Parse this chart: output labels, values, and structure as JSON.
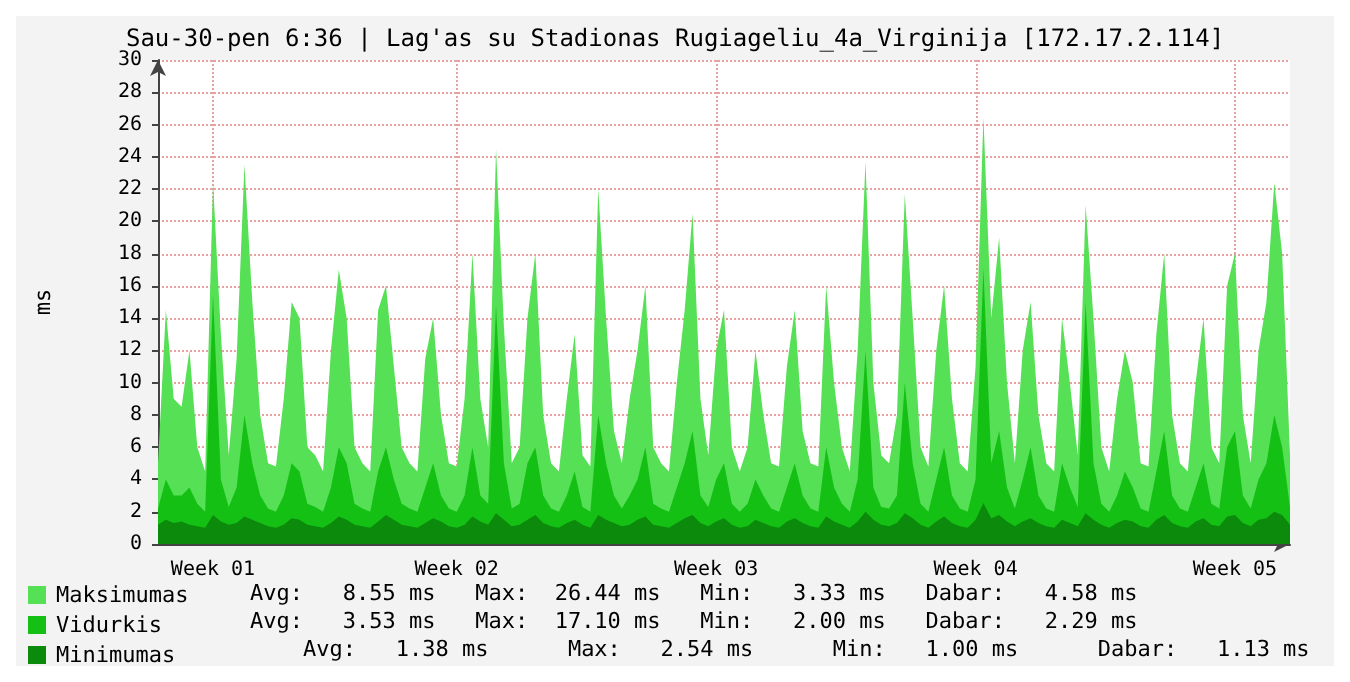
{
  "chart_data": {
    "type": "area",
    "title": "Sau-30-pen 6:36 | Lag'as su Stadionas Rugiageliu_4a_Virginija [172.17.2.114]",
    "ylabel": "ms",
    "categories": [
      null,
      null,
      null,
      null,
      null,
      null,
      null,
      "Week 01",
      null,
      null,
      null,
      null,
      null,
      null,
      null,
      null,
      null,
      null,
      null,
      null,
      null,
      null,
      null,
      null,
      null,
      null,
      null,
      null,
      null,
      null,
      null,
      null,
      null,
      null,
      null,
      null,
      null,
      null,
      "Week 02",
      null,
      null,
      null,
      null,
      null,
      null,
      null,
      null,
      null,
      null,
      null,
      null,
      null,
      null,
      null,
      null,
      null,
      null,
      null,
      null,
      null,
      null,
      null,
      null,
      null,
      null,
      null,
      null,
      null,
      null,
      null,
      null,
      "Week 03",
      null,
      null,
      null,
      null,
      null,
      null,
      null,
      null,
      null,
      null,
      null,
      null,
      null,
      null,
      null,
      null,
      null,
      null,
      null,
      null,
      null,
      null,
      null,
      null,
      null,
      null,
      null,
      null,
      null,
      null,
      null,
      null,
      "Week 04",
      null,
      null,
      null,
      null,
      null,
      null,
      null,
      null,
      null,
      null,
      null,
      null,
      null,
      null,
      null,
      null,
      null,
      null,
      null,
      null,
      null,
      null,
      null,
      null,
      null,
      null,
      null,
      null,
      null,
      null,
      null,
      null,
      "Week 05",
      null,
      null,
      null,
      null,
      null,
      null,
      null
    ],
    "series": [
      {
        "name": "Maksimumas",
        "color": "#55e055",
        "values": [
          5,
          14.5,
          9,
          8.5,
          12,
          6,
          4.5,
          22.4,
          13,
          5.5,
          11.5,
          23.5,
          15,
          8,
          5,
          4.8,
          9,
          15,
          14,
          6,
          5.5,
          4.5,
          12,
          17,
          14,
          6,
          5,
          4.5,
          14.5,
          16,
          11,
          6,
          5,
          4.5,
          11.5,
          14,
          8,
          5,
          4.8,
          9,
          18,
          9,
          6,
          24.5,
          13.5,
          5,
          6,
          14,
          18,
          8,
          5,
          4.5,
          9,
          13,
          5.5,
          4.8,
          22,
          14,
          7,
          5,
          9,
          12,
          16,
          6,
          5,
          4.5,
          10,
          14.5,
          20.5,
          9,
          5.5,
          12,
          14.5,
          6,
          4.5,
          6,
          12,
          8,
          5,
          4.8,
          11,
          14.5,
          7,
          5,
          4.8,
          16,
          10,
          6,
          4.5,
          12,
          23.7,
          10,
          5.5,
          5,
          8,
          21.7,
          14,
          6,
          4.8,
          12,
          16,
          9,
          5,
          4.5,
          11,
          26.44,
          14,
          19,
          10,
          5,
          12,
          15,
          8,
          5,
          4.5,
          14,
          10,
          5.5,
          21,
          14,
          6,
          4.5,
          9,
          12,
          10,
          5,
          4.8,
          13,
          18,
          8,
          5,
          4.5,
          10,
          14,
          6,
          5,
          16,
          18,
          8,
          5,
          12,
          15,
          22.4,
          18,
          5.5
        ]
      },
      {
        "name": "Vidurkis",
        "color": "#15c015",
        "values": [
          2.2,
          4,
          3,
          3,
          3.5,
          2.5,
          2,
          15.5,
          4,
          2.3,
          3.5,
          8,
          5,
          3,
          2.2,
          2,
          3,
          5,
          4.5,
          2.5,
          2.3,
          2,
          3.5,
          6,
          5,
          2.5,
          2.2,
          2,
          4.5,
          6,
          4,
          2.5,
          2.2,
          2,
          3.5,
          5,
          3,
          2.2,
          2,
          3,
          6,
          3,
          2.5,
          14.8,
          5,
          2.2,
          2.5,
          5,
          6,
          3,
          2.2,
          2,
          3,
          4.5,
          2.3,
          2,
          8,
          5,
          3,
          2.2,
          3,
          4,
          6,
          2.5,
          2.2,
          2,
          3.5,
          5,
          7,
          3,
          2.3,
          4,
          5,
          2.5,
          2,
          2.5,
          4,
          3,
          2.2,
          2,
          3.5,
          5,
          3,
          2.2,
          2,
          6,
          3.5,
          2.5,
          2,
          4,
          12,
          3.5,
          2.3,
          2.2,
          3,
          10,
          5,
          2.5,
          2,
          4,
          6,
          3,
          2.2,
          2,
          4,
          17.1,
          5,
          7,
          3.5,
          2.2,
          4,
          6,
          3,
          2.2,
          2,
          5,
          3.5,
          2.3,
          15,
          5,
          2.5,
          2,
          3,
          4.5,
          3.5,
          2.2,
          2,
          4.5,
          7,
          3,
          2.2,
          2,
          3.5,
          5,
          2.5,
          2.2,
          6,
          7,
          3,
          2.2,
          4,
          5,
          8,
          6,
          2.3
        ]
      },
      {
        "name": "Minimumas",
        "color": "#0b8a0b",
        "values": [
          1.2,
          1.5,
          1.3,
          1.4,
          1.2,
          1.1,
          1.0,
          1.8,
          1.4,
          1.2,
          1.3,
          1.7,
          1.5,
          1.3,
          1.1,
          1.0,
          1.2,
          1.6,
          1.5,
          1.2,
          1.1,
          1.0,
          1.3,
          1.7,
          1.5,
          1.2,
          1.1,
          1.0,
          1.4,
          1.8,
          1.5,
          1.2,
          1.1,
          1.0,
          1.3,
          1.6,
          1.4,
          1.1,
          1.0,
          1.2,
          1.7,
          1.4,
          1.2,
          1.9,
          1.5,
          1.1,
          1.2,
          1.5,
          1.8,
          1.3,
          1.1,
          1.0,
          1.3,
          1.5,
          1.2,
          1.0,
          1.8,
          1.5,
          1.3,
          1.1,
          1.2,
          1.5,
          1.7,
          1.2,
          1.1,
          1.0,
          1.3,
          1.6,
          1.8,
          1.3,
          1.1,
          1.4,
          1.6,
          1.2,
          1.0,
          1.1,
          1.5,
          1.3,
          1.1,
          1.0,
          1.4,
          1.6,
          1.3,
          1.1,
          1.0,
          1.7,
          1.4,
          1.2,
          1.0,
          1.4,
          2.0,
          1.5,
          1.2,
          1.1,
          1.3,
          1.9,
          1.6,
          1.2,
          1.0,
          1.4,
          1.7,
          1.3,
          1.1,
          1.0,
          1.5,
          2.54,
          1.6,
          1.8,
          1.4,
          1.1,
          1.4,
          1.6,
          1.3,
          1.1,
          1.0,
          1.5,
          1.3,
          1.1,
          1.9,
          1.5,
          1.2,
          1.0,
          1.3,
          1.5,
          1.4,
          1.1,
          1.0,
          1.5,
          1.8,
          1.3,
          1.1,
          1.0,
          1.4,
          1.6,
          1.2,
          1.1,
          1.7,
          1.8,
          1.3,
          1.1,
          1.5,
          1.6,
          2.0,
          1.8,
          1.2
        ]
      }
    ],
    "ylim": [
      0,
      30
    ],
    "yticks": [
      0,
      2,
      4,
      6,
      8,
      10,
      12,
      14,
      16,
      18,
      20,
      22,
      24,
      26,
      28,
      30
    ],
    "grid": true,
    "legend": "bottom",
    "annotations": [
      "Avg:   8.55 ms   Max:  26.44 ms   Min:   3.33 ms   Dabar:   4.58 ms",
      "Avg:   3.53 ms   Max:  17.10 ms   Min:   2.00 ms   Dabar:   2.29 ms",
      "    Avg:   1.38 ms      Max:   2.54 ms      Min:   1.00 ms      Dabar:   1.13 ms"
    ]
  }
}
